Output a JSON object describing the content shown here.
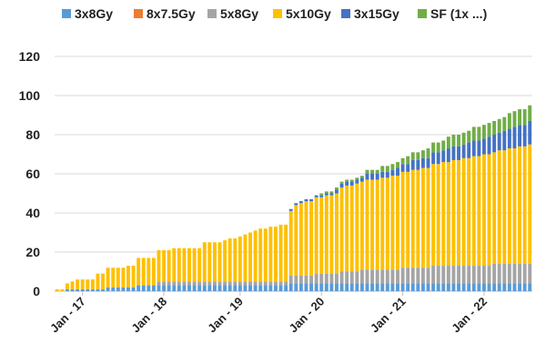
{
  "chart_data": {
    "type": "bar",
    "stacked": true,
    "grid": true,
    "legend_position": "top",
    "ylim": [
      0,
      120
    ],
    "y_ticks": [
      0,
      20,
      40,
      60,
      80,
      100,
      120
    ],
    "x_tick_labels": [
      "Jan - 17",
      "Jan - 18",
      "Jan - 19",
      "Jan - 20",
      "Jan - 21",
      "Jan - 22"
    ],
    "x_tick_bar_index": [
      5,
      21,
      36,
      52,
      68,
      84
    ],
    "series": [
      {
        "name": "3x8Gy",
        "color": "#5b9bd5",
        "values": [
          0,
          0,
          1,
          1,
          1,
          1,
          1,
          1,
          1,
          1,
          2,
          2,
          2,
          2,
          2,
          2,
          3,
          3,
          3,
          3,
          3,
          3,
          3,
          3,
          3,
          3,
          3,
          3,
          3,
          3,
          3,
          3,
          3,
          3,
          3,
          3,
          3,
          3,
          3,
          3,
          3,
          3,
          3,
          3,
          3,
          3,
          4,
          4,
          4,
          4,
          4,
          4,
          4,
          4,
          4,
          4,
          4,
          4,
          4,
          4,
          4,
          4,
          4,
          4,
          4,
          4,
          4,
          4,
          4,
          4,
          4,
          4,
          4,
          4,
          4,
          4,
          4,
          4,
          4,
          4,
          4,
          4,
          4,
          4,
          4,
          4,
          4,
          4,
          4,
          4,
          4,
          4,
          4,
          4
        ]
      },
      {
        "name": "8x7.5Gy",
        "color": "#ed7d31",
        "values": [
          0,
          0,
          0,
          0,
          0,
          0,
          0,
          0,
          0,
          0,
          0,
          0,
          0,
          0,
          0,
          0,
          0,
          0,
          0,
          0,
          0,
          0,
          0,
          0,
          0,
          0,
          0,
          0,
          0,
          0,
          0,
          0,
          0,
          0,
          0,
          0,
          0,
          0,
          0,
          0,
          0,
          0,
          0,
          0,
          0,
          0,
          0,
          0,
          0,
          0,
          0,
          0,
          0,
          0,
          0,
          0,
          0,
          0,
          0,
          0,
          0,
          0,
          0,
          0,
          0,
          0,
          0,
          0,
          0,
          0,
          0,
          0,
          0,
          0,
          0,
          0,
          0,
          0,
          0,
          0,
          0,
          0,
          0,
          0,
          0,
          0,
          0,
          0,
          0,
          0,
          0,
          0,
          0,
          0
        ]
      },
      {
        "name": "5x8Gy",
        "color": "#a5a5a5",
        "values": [
          0,
          0,
          0,
          0,
          0,
          0,
          0,
          0,
          0,
          0,
          0,
          0,
          0,
          0,
          0,
          0,
          0,
          0,
          0,
          0,
          2,
          2,
          2,
          2,
          2,
          2,
          2,
          2,
          2,
          2,
          2,
          2,
          2,
          2,
          2,
          2,
          2,
          2,
          2,
          2,
          2,
          2,
          2,
          2,
          2,
          2,
          4,
          4,
          4,
          4,
          4,
          5,
          5,
          5,
          5,
          5,
          6,
          6,
          6,
          6,
          7,
          7,
          7,
          7,
          7,
          7,
          7,
          7,
          8,
          8,
          8,
          8,
          8,
          8,
          9,
          9,
          9,
          9,
          9,
          9,
          9,
          9,
          9,
          9,
          9,
          9,
          10,
          10,
          10,
          10,
          10,
          10,
          10,
          10
        ]
      },
      {
        "name": "5x10Gy",
        "color": "#ffc000",
        "values": [
          1,
          1,
          3,
          4,
          5,
          5,
          5,
          5,
          8,
          8,
          10,
          10,
          10,
          10,
          11,
          11,
          14,
          14,
          14,
          14,
          16,
          16,
          16,
          17,
          17,
          17,
          17,
          17,
          17,
          20,
          20,
          20,
          20,
          21,
          22,
          22,
          23,
          24,
          25,
          26,
          27,
          27,
          28,
          28,
          29,
          29,
          33,
          36,
          37,
          38,
          38,
          39,
          39,
          40,
          40,
          41,
          43,
          44,
          44,
          45,
          45,
          46,
          46,
          46,
          47,
          47,
          48,
          48,
          49,
          49,
          50,
          50,
          51,
          51,
          52,
          52,
          53,
          53,
          54,
          54,
          55,
          55,
          56,
          56,
          57,
          57,
          57,
          58,
          58,
          59,
          59,
          60,
          60,
          61
        ]
      },
      {
        "name": "3x15Gy",
        "color": "#4472c4",
        "values": [
          0,
          0,
          0,
          0,
          0,
          0,
          0,
          0,
          0,
          0,
          0,
          0,
          0,
          0,
          0,
          0,
          0,
          0,
          0,
          0,
          0,
          0,
          0,
          0,
          0,
          0,
          0,
          0,
          0,
          0,
          0,
          0,
          0,
          0,
          0,
          0,
          0,
          0,
          0,
          0,
          0,
          0,
          0,
          0,
          0,
          0,
          1,
          1,
          1,
          1,
          1,
          1,
          1,
          1,
          1,
          2,
          2,
          2,
          2,
          2,
          2,
          3,
          3,
          3,
          3,
          3,
          3,
          4,
          4,
          4,
          5,
          5,
          5,
          5,
          6,
          6,
          6,
          7,
          7,
          7,
          7,
          8,
          8,
          8,
          8,
          9,
          9,
          9,
          10,
          10,
          11,
          11,
          11,
          12
        ]
      },
      {
        "name": "SF (1x ...)",
        "color": "#70ad47",
        "values": [
          0,
          0,
          0,
          0,
          0,
          0,
          0,
          0,
          0,
          0,
          0,
          0,
          0,
          0,
          0,
          0,
          0,
          0,
          0,
          0,
          0,
          0,
          0,
          0,
          0,
          0,
          0,
          0,
          0,
          0,
          0,
          0,
          0,
          0,
          0,
          0,
          0,
          0,
          0,
          0,
          0,
          0,
          0,
          0,
          0,
          0,
          0,
          0,
          0,
          0,
          0,
          0,
          1,
          1,
          1,
          1,
          1,
          1,
          1,
          1,
          1,
          2,
          2,
          2,
          3,
          3,
          3,
          3,
          3,
          4,
          4,
          4,
          4,
          5,
          5,
          5,
          5,
          6,
          6,
          6,
          6,
          6,
          7,
          7,
          7,
          7,
          7,
          7,
          7,
          8,
          8,
          8,
          8,
          8
        ]
      }
    ]
  }
}
